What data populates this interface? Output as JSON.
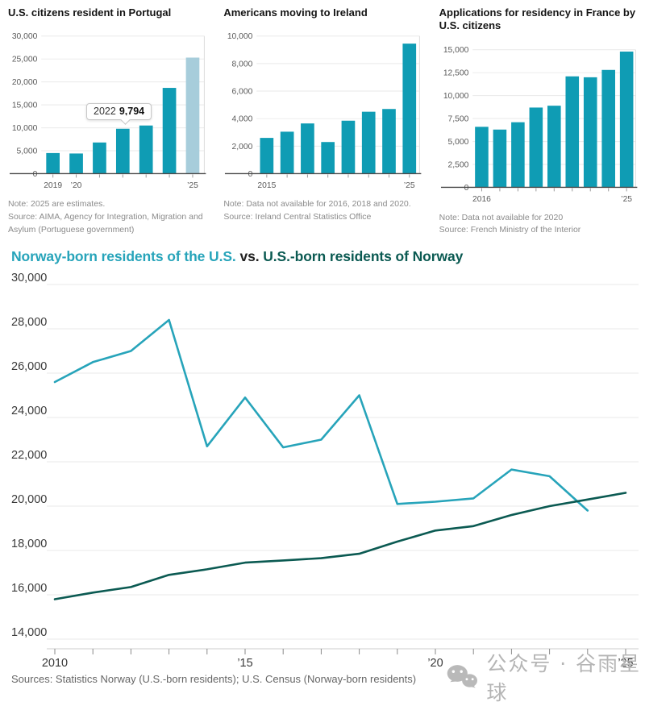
{
  "colors": {
    "bar_teal": "#0f9cb4",
    "bar_light_estimate": "#a7cddb",
    "line_light": "#27a4ba",
    "line_dark": "#0b5a52",
    "grid": "#e9e9e9",
    "axis_dark": "#4a4a4a",
    "tick": "#999999",
    "note_gray": "#8b8b8b"
  },
  "chart_data": [
    {
      "type": "bar",
      "title": "U.S. citizens resident in Portugal",
      "categories": [
        "2019",
        "2020",
        "2021",
        "2022",
        "2023",
        "2024",
        "2025"
      ],
      "values": [
        4500,
        4400,
        6800,
        9794,
        10500,
        18700,
        25300
      ],
      "ylim": [
        0,
        30000
      ],
      "ytick_step": 5000,
      "xtick_labels": {
        "0": "2019",
        "1": "’20",
        "6": "’25"
      },
      "estimate_indices": [
        6
      ],
      "tooltip": {
        "label": "2022",
        "value": "9,794",
        "index": 3
      },
      "note": "Note: 2025 are estimates.",
      "source": "Source: AIMA, Agency for Integration, Migration and Asylum (Portuguese government)"
    },
    {
      "type": "bar",
      "title": "Americans moving to Ireland",
      "categories": [
        "2015",
        "2017",
        "2019",
        "2021",
        "2022",
        "2023",
        "2024",
        "2025"
      ],
      "values": [
        2600,
        3050,
        3650,
        2300,
        3850,
        4500,
        4700,
        9450
      ],
      "ylim": [
        0,
        10000
      ],
      "ytick_step": 2000,
      "xtick_labels": {
        "0": "2015",
        "7": "’25"
      },
      "estimate_indices": [],
      "note": "Note: Data not available for 2016, 2018 and 2020.",
      "source": "Source: Ireland Central Statistics Office"
    },
    {
      "type": "bar",
      "title": "Applications for residency in France by U.S. citizens",
      "categories": [
        "2016",
        "2017",
        "2018",
        "2019",
        "2021",
        "2022",
        "2023",
        "2024",
        "2025"
      ],
      "values": [
        6600,
        6300,
        7100,
        8700,
        8900,
        12100,
        12000,
        12800,
        14800
      ],
      "ylim": [
        0,
        15000
      ],
      "ytick_step": 2500,
      "xtick_labels": {
        "0": "2016",
        "8": "’25"
      },
      "estimate_indices": [],
      "note": "Note: Data not available for 2020",
      "source": "Source: French Ministry of the Interior"
    },
    {
      "type": "line",
      "title_parts": [
        {
          "text": "Norway-born residents of the U.S.",
          "color": "#27a4ba"
        },
        {
          "text": " vs. ",
          "color": "#222222"
        },
        {
          "text": "U.S.-born residents of Norway",
          "color": "#0b5a52"
        }
      ],
      "x": [
        2010,
        2011,
        2012,
        2013,
        2014,
        2015,
        2016,
        2017,
        2018,
        2019,
        2020,
        2021,
        2022,
        2023,
        2024,
        2025
      ],
      "series": [
        {
          "name": "Norway-born residents of the U.S.",
          "color": "#27a4ba",
          "values": [
            25600,
            26500,
            27000,
            28400,
            22700,
            24900,
            22650,
            23000,
            25000,
            20100,
            20200,
            20350,
            21650,
            21350,
            19800,
            null
          ]
        },
        {
          "name": "U.S.-born residents of Norway",
          "color": "#0b5a52",
          "values": [
            15800,
            16100,
            16350,
            16900,
            17150,
            17450,
            17550,
            17650,
            17850,
            18400,
            18900,
            19100,
            19600,
            20000,
            20300,
            20600
          ]
        }
      ],
      "ylim": [
        14000,
        30000
      ],
      "ytick_step": 2000,
      "xtick_labels": {
        "2010": "2010",
        "2015": "’15",
        "2020": "’20",
        "2025": "’25"
      },
      "sources": "Sources: Statistics Norway (U.S.-born residents); U.S. Census (Norway-born residents)"
    }
  ],
  "watermark": {
    "icon": "wechat-icon",
    "text": "公众号 · 谷雨星球"
  }
}
